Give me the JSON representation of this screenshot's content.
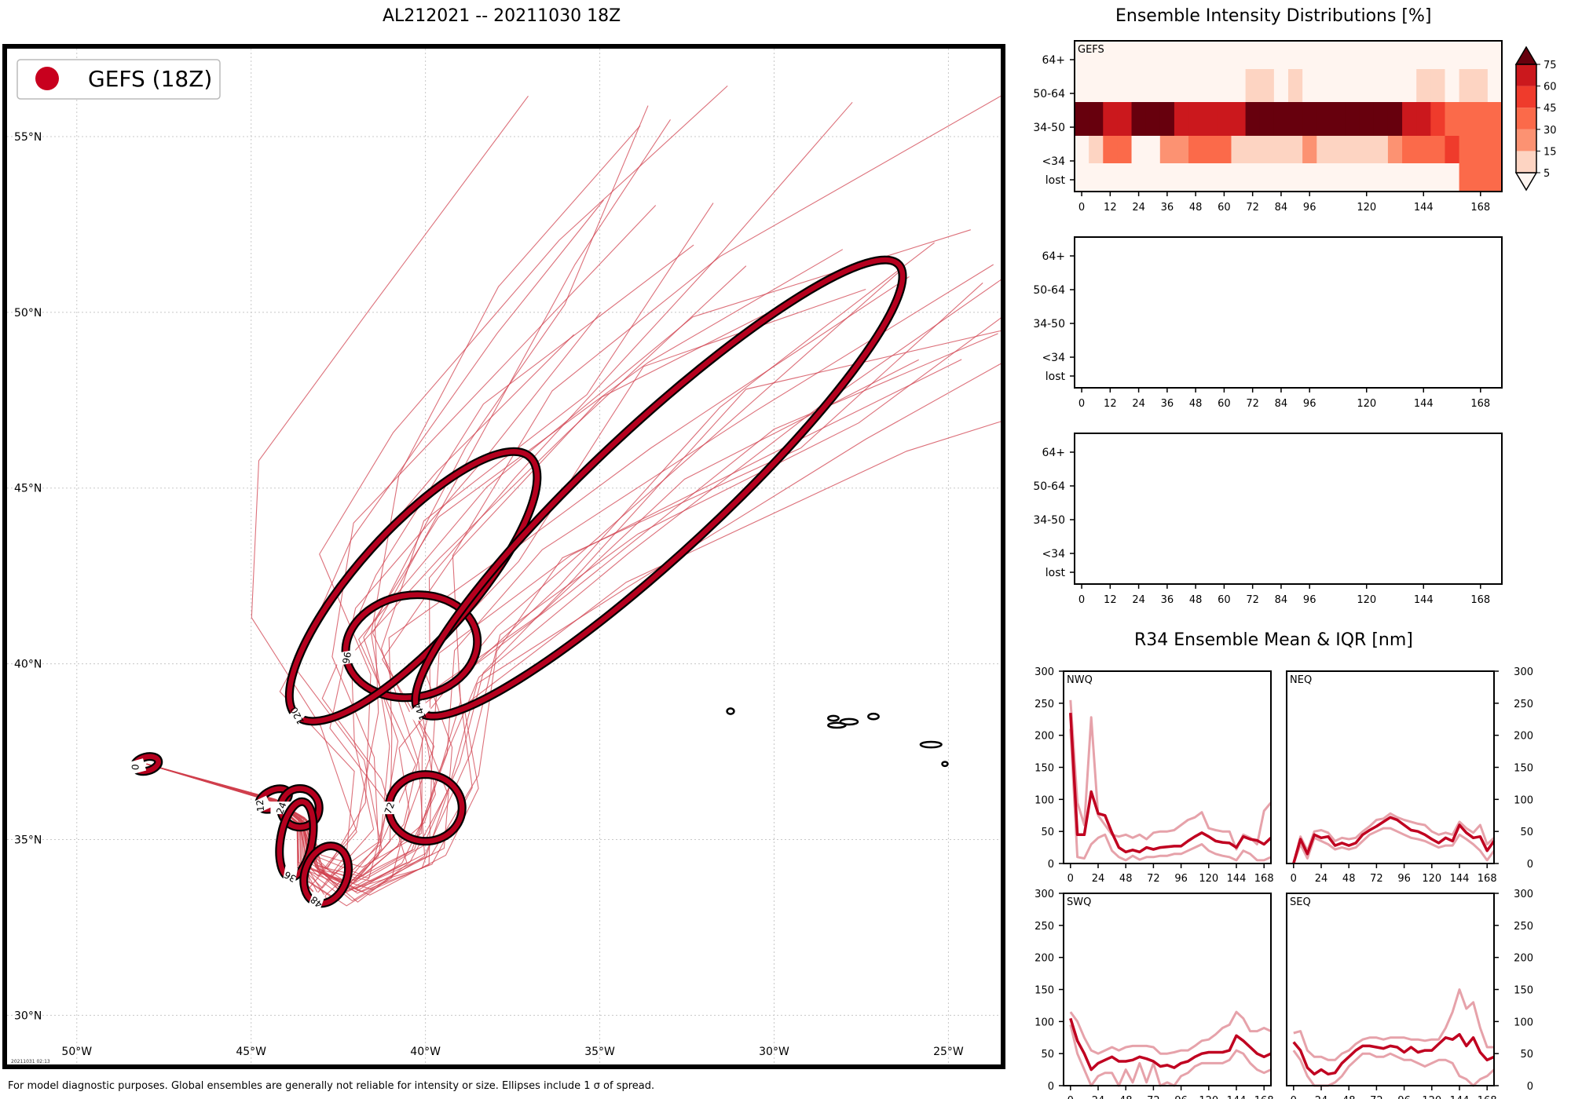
{
  "titles": {
    "map_title": "AL212021 -- 20211030 18Z",
    "intensity_title": "Ensemble Intensity Distributions [%]",
    "r34_title": "R34 Ensemble Mean & IQR [nm]"
  },
  "footer": {
    "note": "For model diagnostic purposes. Global ensembles are generally not reliable for intensity or size. Ellipses include 1 σ of spread.",
    "stamp": "20211031 02:13"
  },
  "map": {
    "legend_label": "GEFS (18Z)",
    "colors": {
      "track": "#d0404e",
      "ellipse": "#b5001e",
      "frame": "#000000",
      "grid": "#c8c8c8"
    },
    "lon_labels": [
      "50°W",
      "45°W",
      "40°W",
      "35°W",
      "30°W",
      "25°W"
    ],
    "lat_labels": [
      "55°N",
      "50°N",
      "45°N",
      "40°N",
      "35°N",
      "30°N"
    ],
    "lon_values": [
      -50,
      -45,
      -40,
      -35,
      -30,
      -25
    ],
    "lat_values": [
      55,
      50,
      45,
      40,
      35,
      30
    ],
    "extent": {
      "lon_min": -52.0,
      "lon_max": -23.5,
      "lat_min": 28.6,
      "lat_max": 57.5
    },
    "ellipses": [
      {
        "hour": "0",
        "lon": -48.0,
        "lat": 37.15,
        "rx": 0.35,
        "ry": 0.2,
        "rot": -15
      },
      {
        "hour": "12",
        "lon": -44.35,
        "lat": 36.15,
        "rx": 0.45,
        "ry": 0.25,
        "rot": -25
      },
      {
        "hour": "24",
        "lon": -43.6,
        "lat": 35.9,
        "rx": 0.55,
        "ry": 0.55,
        "rot": 0
      },
      {
        "hour": "36",
        "lon": -43.7,
        "lat": 35.0,
        "rx": 1.1,
        "ry": 0.45,
        "rot": -80
      },
      {
        "hour": "48",
        "lon": -42.85,
        "lat": 34.0,
        "rx": 0.85,
        "ry": 0.6,
        "rot": -70
      },
      {
        "hour": "72",
        "lon": -40.0,
        "lat": 35.9,
        "rx": 1.05,
        "ry": 0.95,
        "rot": 0
      },
      {
        "hour": "96",
        "lon": -40.4,
        "lat": 40.5,
        "rx": 1.9,
        "ry": 1.45,
        "rot": -10
      },
      {
        "hour": "120",
        "lon": -40.35,
        "lat": 42.2,
        "rx": 5.0,
        "ry": 1.6,
        "rot": -48
      },
      {
        "hour": "144",
        "lon": -33.3,
        "lat": 45.0,
        "rx": 9.4,
        "ry": 1.8,
        "rot": -43
      }
    ],
    "land_islands": [
      {
        "lon": -31.25,
        "lat": 38.65,
        "rx": 0.1,
        "ry": 0.08
      },
      {
        "lon": -28.3,
        "lat": 38.45,
        "rx": 0.15,
        "ry": 0.07
      },
      {
        "lon": -27.85,
        "lat": 38.35,
        "rx": 0.25,
        "ry": 0.08
      },
      {
        "lon": -28.2,
        "lat": 38.25,
        "rx": 0.25,
        "ry": 0.07
      },
      {
        "lon": -27.15,
        "lat": 38.5,
        "rx": 0.15,
        "ry": 0.08
      },
      {
        "lon": -25.5,
        "lat": 37.7,
        "rx": 0.3,
        "ry": 0.08
      },
      {
        "lon": -25.1,
        "lat": 37.15,
        "rx": 0.08,
        "ry": 0.06
      }
    ]
  },
  "intensity": {
    "panel_label": "GEFS",
    "categories": [
      "64+",
      "50-64",
      "34-50",
      "<34",
      "lost"
    ],
    "x_ticks": [
      0,
      12,
      24,
      36,
      48,
      60,
      72,
      84,
      96,
      120,
      144,
      168
    ],
    "colorbar_ticks": [
      5,
      15,
      30,
      45,
      60,
      75
    ],
    "colorbar_colors": [
      "#fdd4c2",
      "#fc9272",
      "#fb6a4a",
      "#ef3b2c",
      "#cb181d",
      "#a50f15",
      "#67000d"
    ],
    "colorbar_under": "#fff5f0",
    "chart_data": [
      {
        "type": "heatmap",
        "title": "GEFS",
        "categories": [
          "64+",
          "50-64",
          "34-50",
          "<34",
          "lost"
        ],
        "x": [
          0,
          6,
          12,
          18,
          24,
          30,
          36,
          42,
          48,
          54,
          60,
          66,
          72,
          78,
          84,
          90,
          96,
          102,
          108,
          114,
          120,
          126,
          132,
          138,
          144,
          150,
          156,
          162,
          168,
          174
        ],
        "values_pct": [
          [
            0,
            0,
            0,
            0,
            0,
            0,
            0,
            0,
            0,
            0,
            0,
            0,
            0,
            0,
            0,
            0,
            0,
            0,
            0,
            0,
            0,
            0,
            0,
            0,
            0,
            0,
            0,
            0,
            0,
            0
          ],
          [
            0,
            0,
            0,
            0,
            0,
            0,
            0,
            0,
            0,
            0,
            0,
            0,
            10,
            10,
            0,
            10,
            0,
            0,
            0,
            0,
            0,
            0,
            0,
            0,
            10,
            10,
            0,
            10,
            10,
            0
          ],
          [
            95,
            95,
            65,
            65,
            95,
            95,
            95,
            65,
            65,
            65,
            65,
            65,
            95,
            95,
            95,
            95,
            95,
            95,
            95,
            95,
            95,
            95,
            95,
            65,
            65,
            50,
            35,
            35,
            35,
            35
          ],
          [
            3,
            10,
            30,
            30,
            3,
            3,
            20,
            20,
            35,
            35,
            35,
            10,
            10,
            10,
            10,
            10,
            20,
            10,
            10,
            10,
            10,
            10,
            20,
            35,
            35,
            35,
            50,
            35,
            35,
            35
          ],
          [
            0,
            0,
            0,
            0,
            0,
            0,
            0,
            0,
            0,
            0,
            0,
            0,
            0,
            0,
            0,
            0,
            0,
            0,
            0,
            0,
            0,
            0,
            0,
            0,
            0,
            0,
            0,
            35,
            35,
            35
          ]
        ],
        "xlim": [
          -3,
          177
        ]
      },
      {
        "type": "heatmap",
        "title": "",
        "categories": [
          "64+",
          "50-64",
          "34-50",
          "<34",
          "lost"
        ],
        "x": [],
        "values_pct": []
      },
      {
        "type": "heatmap",
        "title": "",
        "categories": [
          "64+",
          "50-64",
          "34-50",
          "<34",
          "lost"
        ],
        "x": [],
        "values_pct": []
      }
    ]
  },
  "r34": {
    "y_ticks": [
      0,
      50,
      100,
      150,
      200,
      250,
      300
    ],
    "x_ticks": [
      0,
      24,
      48,
      72,
      96,
      120,
      144,
      168
    ],
    "colors": {
      "mean": "#c00020",
      "iqr": "#e6a2aa"
    },
    "chart_data": [
      {
        "type": "line",
        "title": "NWQ",
        "x": [
          0,
          6,
          12,
          18,
          24,
          30,
          36,
          42,
          48,
          54,
          60,
          66,
          72,
          78,
          84,
          90,
          96,
          102,
          108,
          114,
          120,
          126,
          132,
          138,
          144,
          150,
          156,
          162,
          168,
          174
        ],
        "series": [
          {
            "values": [
              235,
              45,
              45,
              112,
              78,
              75,
              48,
              25,
              18,
              21,
              18,
              25,
              22,
              25,
              26,
              27,
              27,
              35,
              42,
              48,
              42,
              35,
              33,
              32,
              25,
              42,
              38,
              36,
              30,
              40
            ]
          },
          {
            "values": [
              255,
              95,
              60,
              228,
              75,
              60,
              45,
              42,
              45,
              40,
              45,
              38,
              48,
              50,
              50,
              52,
              60,
              68,
              72,
              80,
              55,
              52,
              50,
              50,
              22,
              45,
              40,
              30,
              82,
              95
            ]
          },
          {
            "values": [
              210,
              10,
              8,
              30,
              40,
              45,
              20,
              10,
              5,
              12,
              6,
              10,
              10,
              12,
              12,
              15,
              15,
              20,
              25,
              30,
              20,
              15,
              12,
              10,
              5,
              20,
              15,
              5,
              5,
              10
            ]
          }
        ],
        "xlim": [
          -6,
          174
        ],
        "ylim": [
          0,
          300
        ]
      },
      {
        "type": "line",
        "title": "NEQ",
        "x": [
          0,
          6,
          12,
          18,
          24,
          30,
          36,
          42,
          48,
          54,
          60,
          66,
          72,
          78,
          84,
          90,
          96,
          102,
          108,
          114,
          120,
          126,
          132,
          138,
          144,
          150,
          156,
          162,
          168,
          174
        ],
        "series": [
          {
            "values": [
              0,
              38,
              15,
              45,
              40,
              42,
              28,
              32,
              28,
              32,
              45,
              52,
              58,
              65,
              72,
              68,
              60,
              52,
              50,
              45,
              38,
              32,
              40,
              35,
              60,
              48,
              40,
              42,
              20,
              35
            ]
          },
          {
            "values": [
              0,
              42,
              20,
              50,
              52,
              48,
              35,
              40,
              38,
              40,
              50,
              58,
              68,
              70,
              78,
              72,
              68,
              65,
              62,
              60,
              50,
              45,
              48,
              45,
              65,
              55,
              48,
              60,
              30,
              40
            ]
          },
          {
            "values": [
              0,
              30,
              8,
              40,
              35,
              30,
              22,
              25,
              22,
              25,
              35,
              45,
              50,
              55,
              55,
              50,
              45,
              40,
              38,
              35,
              30,
              25,
              28,
              28,
              45,
              38,
              30,
              20,
              5,
              20
            ]
          }
        ],
        "xlim": [
          -6,
          174
        ],
        "ylim": [
          0,
          300
        ]
      },
      {
        "type": "line",
        "title": "SWQ",
        "x": [
          0,
          6,
          12,
          18,
          24,
          30,
          36,
          42,
          48,
          54,
          60,
          66,
          72,
          78,
          84,
          90,
          96,
          102,
          108,
          114,
          120,
          126,
          132,
          138,
          144,
          150,
          156,
          162,
          168,
          174
        ],
        "series": [
          {
            "values": [
              105,
              70,
              50,
              25,
              35,
              40,
              45,
              38,
              38,
              40,
              45,
              42,
              38,
              30,
              32,
              28,
              35,
              38,
              45,
              50,
              52,
              52,
              52,
              55,
              78,
              70,
              60,
              50,
              45,
              50
            ]
          },
          {
            "values": [
              115,
              100,
              75,
              55,
              50,
              55,
              60,
              55,
              60,
              62,
              62,
              62,
              60,
              50,
              50,
              52,
              55,
              55,
              62,
              70,
              72,
              80,
              90,
              95,
              115,
              105,
              85,
              85,
              90,
              85
            ]
          },
          {
            "values": [
              95,
              50,
              25,
              0,
              15,
              20,
              20,
              0,
              25,
              5,
              35,
              5,
              35,
              0,
              5,
              0,
              15,
              20,
              30,
              35,
              35,
              35,
              35,
              40,
              55,
              50,
              35,
              25,
              20,
              25
            ]
          }
        ],
        "xlim": [
          -6,
          174
        ],
        "ylim": [
          0,
          300
        ]
      },
      {
        "type": "line",
        "title": "SEQ",
        "x": [
          0,
          6,
          12,
          18,
          24,
          30,
          36,
          42,
          48,
          54,
          60,
          66,
          72,
          78,
          84,
          90,
          96,
          102,
          108,
          114,
          120,
          126,
          132,
          138,
          144,
          150,
          156,
          162,
          168,
          174
        ],
        "series": [
          {
            "values": [
              68,
              55,
              28,
              18,
              25,
              18,
              20,
              35,
              45,
              55,
              62,
              62,
              60,
              58,
              62,
              60,
              52,
              60,
              52,
              55,
              55,
              65,
              75,
              72,
              80,
              62,
              75,
              52,
              40,
              45
            ]
          },
          {
            "values": [
              82,
              85,
              55,
              45,
              45,
              40,
              40,
              50,
              55,
              65,
              72,
              75,
              75,
              72,
              75,
              75,
              75,
              72,
              72,
              70,
              72,
              72,
              90,
              115,
              150,
              120,
              130,
              90,
              60,
              60
            ]
          },
          {
            "values": [
              55,
              40,
              15,
              0,
              0,
              0,
              5,
              15,
              30,
              40,
              50,
              50,
              45,
              45,
              50,
              45,
              40,
              40,
              35,
              30,
              35,
              40,
              40,
              35,
              15,
              10,
              0,
              10,
              15,
              25
            ]
          }
        ],
        "xlim": [
          -6,
          174
        ],
        "ylim": [
          0,
          300
        ]
      }
    ]
  }
}
